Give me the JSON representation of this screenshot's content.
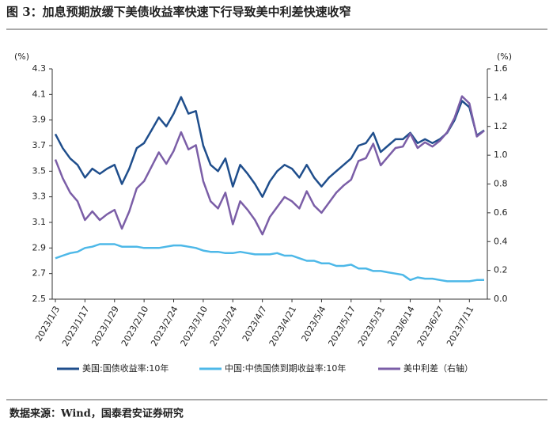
{
  "chart_data": {
    "type": "line",
    "title": "图 3：加息预期放缓下美债收益率快速下行导致美中利差快速收窄",
    "y_unit": "(%)",
    "y2_unit": "(%)",
    "source": "数据来源：Wind，国泰君安证券研究",
    "categories": [
      "2023/1/3",
      null,
      null,
      null,
      "2023/1/17",
      null,
      null,
      null,
      "2023/1/29",
      null,
      null,
      null,
      "2023/2/10",
      null,
      null,
      null,
      "2023/2/24",
      null,
      null,
      null,
      "2023/3/10",
      null,
      null,
      null,
      "2023/3/24",
      null,
      null,
      null,
      "2023/4/7",
      null,
      null,
      null,
      "2023/4/21",
      null,
      null,
      null,
      "2023/5/4",
      null,
      null,
      null,
      "2023/5/17",
      null,
      null,
      null,
      "2023/5/31",
      null,
      null,
      null,
      "2023/6/14",
      null,
      null,
      null,
      "2023/6/27",
      null,
      null,
      null,
      "2023/7/11",
      null,
      null
    ],
    "series": [
      {
        "name": "美国:国债收益率:10年",
        "color": "#1f4e8c",
        "values": [
          3.79,
          3.68,
          3.6,
          3.55,
          3.45,
          3.52,
          3.48,
          3.52,
          3.55,
          3.4,
          3.52,
          3.68,
          3.72,
          3.82,
          3.92,
          3.85,
          3.95,
          4.08,
          3.95,
          3.97,
          3.7,
          3.55,
          3.5,
          3.6,
          3.38,
          3.55,
          3.48,
          3.4,
          3.3,
          3.42,
          3.5,
          3.55,
          3.52,
          3.45,
          3.55,
          3.45,
          3.38,
          3.45,
          3.5,
          3.55,
          3.6,
          3.7,
          3.72,
          3.8,
          3.65,
          3.7,
          3.75,
          3.75,
          3.8,
          3.72,
          3.75,
          3.72,
          3.75,
          3.8,
          3.9,
          4.05,
          4.0,
          3.78,
          3.82
        ]
      },
      {
        "name": "中国:中债国债到期收益率:10年",
        "color": "#4db8e8",
        "values": [
          2.82,
          2.84,
          2.86,
          2.87,
          2.9,
          2.91,
          2.93,
          2.93,
          2.93,
          2.91,
          2.91,
          2.91,
          2.9,
          2.9,
          2.9,
          2.91,
          2.92,
          2.92,
          2.91,
          2.9,
          2.88,
          2.87,
          2.87,
          2.86,
          2.86,
          2.87,
          2.86,
          2.85,
          2.85,
          2.85,
          2.86,
          2.84,
          2.84,
          2.82,
          2.8,
          2.8,
          2.78,
          2.78,
          2.76,
          2.76,
          2.77,
          2.74,
          2.74,
          2.72,
          2.72,
          2.71,
          2.7,
          2.69,
          2.65,
          2.67,
          2.66,
          2.66,
          2.65,
          2.64,
          2.64,
          2.64,
          2.64,
          2.65,
          2.65
        ]
      },
      {
        "name": "美中利差（右轴）",
        "color": "#7b5ea7",
        "axis": "y2",
        "values": [
          0.97,
          0.84,
          0.74,
          0.68,
          0.55,
          0.61,
          0.55,
          0.59,
          0.62,
          0.49,
          0.61,
          0.77,
          0.82,
          0.92,
          1.02,
          0.94,
          1.03,
          1.16,
          1.04,
          1.07,
          0.82,
          0.68,
          0.63,
          0.74,
          0.52,
          0.68,
          0.62,
          0.55,
          0.45,
          0.57,
          0.64,
          0.71,
          0.68,
          0.63,
          0.75,
          0.65,
          0.6,
          0.67,
          0.74,
          0.79,
          0.83,
          0.96,
          0.98,
          1.08,
          0.93,
          0.99,
          1.05,
          1.06,
          1.15,
          1.05,
          1.09,
          1.06,
          1.1,
          1.16,
          1.26,
          1.41,
          1.36,
          1.13,
          1.17
        ]
      }
    ],
    "ylim": [
      2.5,
      4.3
    ],
    "yticks": [
      2.5,
      2.7,
      2.9,
      3.1,
      3.3,
      3.5,
      3.7,
      3.9,
      4.1,
      4.3
    ],
    "y2lim": [
      0,
      1.6
    ],
    "y2ticks": [
      {
        "value": 0,
        "label": "0.0"
      },
      0.2,
      0.4,
      0.6,
      0.8,
      {
        "value": 1,
        "label": "1.0"
      },
      1.2,
      1.4,
      1.6
    ],
    "grid": false
  }
}
